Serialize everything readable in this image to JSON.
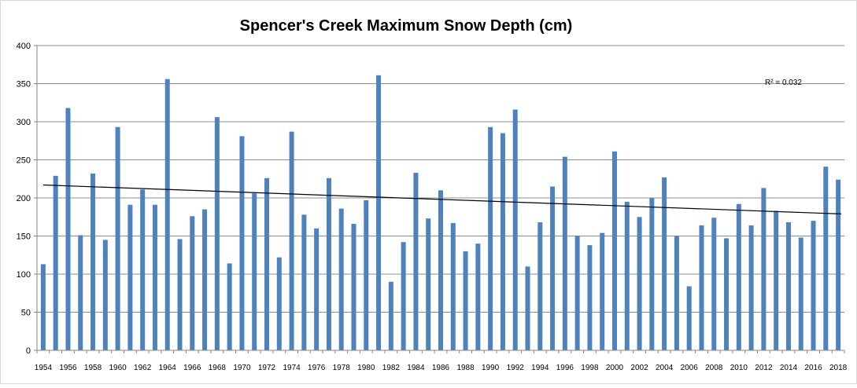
{
  "chart_data": {
    "type": "bar",
    "title": "Spencer's Creek Maximum Snow Depth (cm)",
    "xlabel": "",
    "ylabel": "",
    "ylim": [
      0,
      400
    ],
    "y_ticks": [
      0,
      50,
      100,
      150,
      200,
      250,
      300,
      350,
      400
    ],
    "grid": true,
    "categories": [
      1954,
      1955,
      1956,
      1957,
      1958,
      1959,
      1960,
      1961,
      1962,
      1963,
      1964,
      1965,
      1966,
      1967,
      1968,
      1969,
      1970,
      1971,
      1972,
      1973,
      1974,
      1975,
      1976,
      1977,
      1978,
      1979,
      1980,
      1981,
      1982,
      1983,
      1984,
      1985,
      1986,
      1987,
      1988,
      1989,
      1990,
      1991,
      1992,
      1993,
      1994,
      1995,
      1996,
      1997,
      1998,
      1999,
      2000,
      2001,
      2002,
      2003,
      2004,
      2005,
      2006,
      2007,
      2008,
      2009,
      2010,
      2011,
      2012,
      2013,
      2014,
      2015,
      2016,
      2017,
      2018
    ],
    "x_tick_labels": [
      "1954",
      "1956",
      "1958",
      "1960",
      "1962",
      "1964",
      "1966",
      "1968",
      "1970",
      "1972",
      "1974",
      "1976",
      "1978",
      "1980",
      "1982",
      "1984",
      "1986",
      "1988",
      "1990",
      "1992",
      "1994",
      "1996",
      "1998",
      "2000",
      "2002",
      "2004",
      "2006",
      "2008",
      "2010",
      "2012",
      "2014",
      "2016",
      "2018"
    ],
    "values": [
      113,
      229,
      318,
      151,
      232,
      145,
      293,
      191,
      211,
      191,
      356,
      146,
      176,
      185,
      306,
      114,
      281,
      206,
      226,
      122,
      287,
      178,
      160,
      226,
      186,
      166,
      197,
      361,
      90,
      142,
      233,
      173,
      210,
      167,
      130,
      140,
      293,
      285,
      316,
      110,
      168,
      215,
      254,
      150,
      138,
      154,
      261,
      195,
      175,
      200,
      227,
      150,
      84,
      164,
      174,
      147,
      192,
      164,
      213,
      183,
      168,
      148,
      170,
      241,
      224
    ],
    "trendline": {
      "type": "linear",
      "start": 217,
      "end": 179
    },
    "annotations": [
      {
        "text": "R² = 0.032"
      }
    ],
    "colors": {
      "bar": "#4F81BD",
      "trend": "#000000",
      "grid": "#8C8C8C",
      "axis": "#868686",
      "text": "#000000"
    }
  }
}
